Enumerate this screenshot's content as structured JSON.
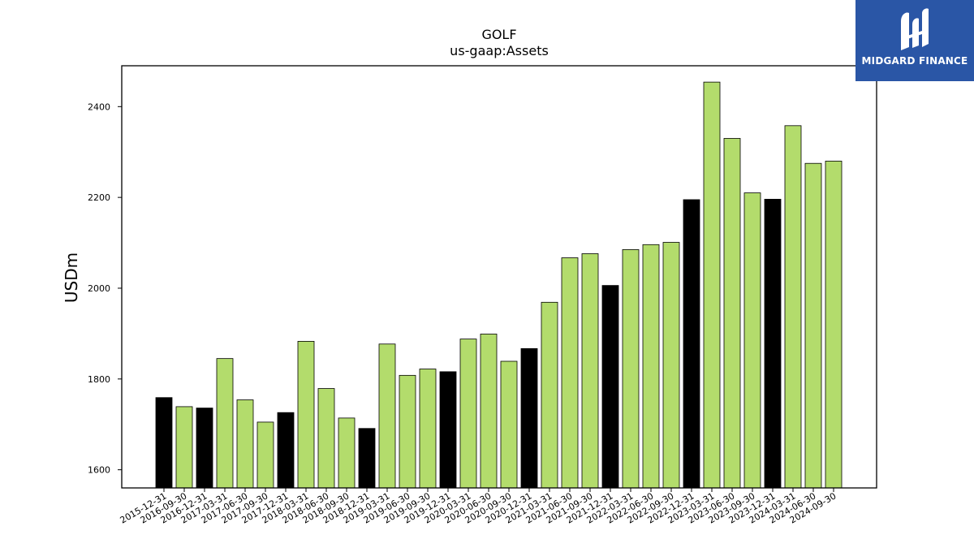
{
  "brand": {
    "name": "MIDGARD FINANCE",
    "bg_color": "#2a56a6"
  },
  "chart_data": {
    "type": "bar",
    "title": "GOLF",
    "subtitle": "us-gaap:Assets",
    "xlabel": "",
    "ylabel": "USDm",
    "ylim": [
      1560,
      2490
    ],
    "yticks": [
      1600,
      1800,
      2000,
      2200,
      2400
    ],
    "grid": false,
    "colors": {
      "annual": "#000000",
      "quarterly": "#b3dc6c",
      "edge": "#000000"
    },
    "categories": [
      "2015-12-31",
      "2016-09-30",
      "2016-12-31",
      "2017-03-31",
      "2017-06-30",
      "2017-09-30",
      "2017-12-31",
      "2018-03-31",
      "2018-06-30",
      "2018-09-30",
      "2018-12-31",
      "2019-03-31",
      "2019-06-30",
      "2019-09-30",
      "2019-12-31",
      "2020-03-31",
      "2020-06-30",
      "2020-09-30",
      "2020-12-31",
      "2021-03-31",
      "2021-06-30",
      "2021-09-30",
      "2021-12-31",
      "2022-03-31",
      "2022-06-30",
      "2022-09-30",
      "2022-12-31",
      "2023-03-31",
      "2023-06-30",
      "2023-09-30",
      "2023-12-31",
      "2024-03-31",
      "2024-06-30",
      "2024-09-30"
    ],
    "values": [
      1759,
      1739,
      1736,
      1845,
      1754,
      1705,
      1726,
      1883,
      1779,
      1714,
      1691,
      1877,
      1808,
      1822,
      1816,
      1888,
      1899,
      1839,
      1867,
      1969,
      2067,
      2076,
      2006,
      2085,
      2096,
      2101,
      2195,
      2454,
      2330,
      2210,
      2196,
      2358,
      2275,
      2280
    ],
    "annual": [
      true,
      false,
      true,
      false,
      false,
      false,
      true,
      false,
      false,
      false,
      true,
      false,
      false,
      false,
      true,
      false,
      false,
      false,
      true,
      false,
      false,
      false,
      true,
      false,
      false,
      false,
      true,
      false,
      false,
      false,
      true,
      false,
      false,
      false
    ]
  }
}
